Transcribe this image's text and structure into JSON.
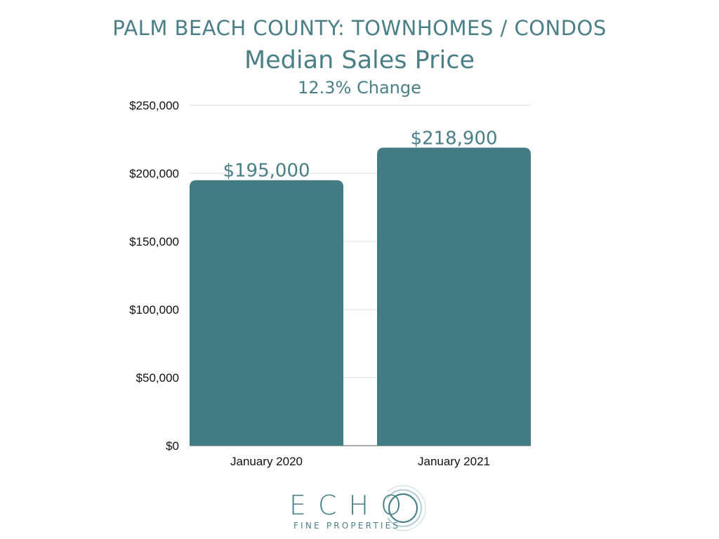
{
  "header": {
    "supertitle": "PALM BEACH COUNTY: TOWNHOMES / CONDOS",
    "title": "Median Sales Price",
    "subtitle": "12.3% Change"
  },
  "colors": {
    "bar": "#437b83",
    "text_accent": "#4b7f87",
    "grid": "#dcdcdc"
  },
  "chart_data": {
    "type": "bar",
    "title": "Median Sales Price",
    "subtitle": "12.3% Change",
    "categories": [
      "January 2020",
      "January 2021"
    ],
    "values": [
      195000,
      218900
    ],
    "data_labels": [
      "$195,000",
      "$218,900"
    ],
    "yticks": [
      0,
      50000,
      100000,
      150000,
      200000,
      250000
    ],
    "ytick_labels": [
      "$0",
      "$50,000",
      "$100,000",
      "$150,000",
      "$200,000",
      "$250,000"
    ],
    "ylim": [
      0,
      250000
    ],
    "xlabel": "",
    "ylabel": "",
    "grid": true,
    "legend": "none"
  },
  "logo": {
    "word": "ECHO",
    "sub": "FINE PROPERTIES"
  }
}
